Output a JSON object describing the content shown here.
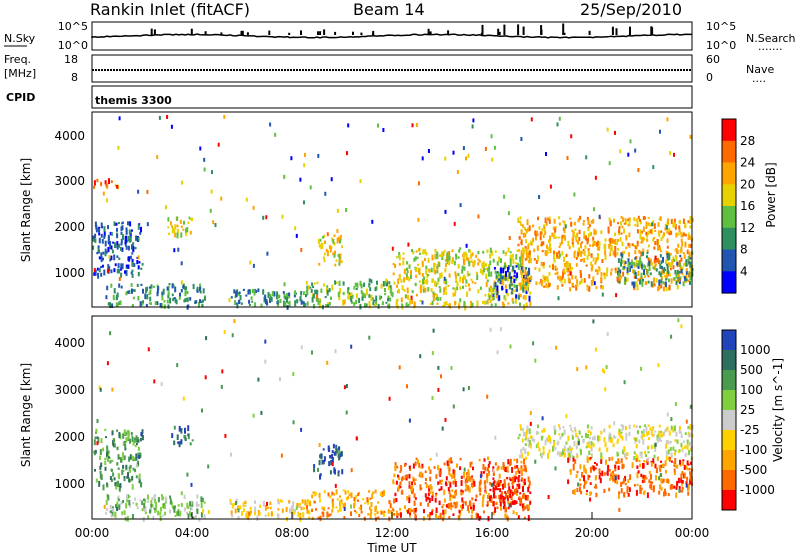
{
  "header": {
    "title": "Rankin Inlet (fitACF)",
    "beam": "Beam 14",
    "date": "25/Sep/2010"
  },
  "top_panel": {
    "left_label": "N.Sky",
    "left_ticks": [
      "10^5",
      "10^0"
    ],
    "right_ticks": [
      "10^5",
      "10^0"
    ],
    "right_label": "N.Search",
    "right_dots": "......."
  },
  "freq_panel": {
    "left_label_1": "Freq.",
    "left_label_2": "[MHz]",
    "left_ticks": [
      "18",
      "8"
    ],
    "right_ticks": [
      "60",
      "0"
    ],
    "right_label": "Nave",
    "right_dots": "...."
  },
  "cpid_panel": {
    "label": "CPID",
    "value": "themis 3300"
  },
  "chart_data": [
    {
      "type": "heatmap",
      "quantity": "Power",
      "ylabel": "Slant Range [km]",
      "yticks": [
        "4000",
        "3000",
        "2000",
        "1000"
      ],
      "ylim": [
        180,
        4500
      ],
      "colorbar": {
        "label": "Power [dB]",
        "ticks": [
          "28",
          "24",
          "20",
          "16",
          "12",
          "8",
          "4"
        ],
        "colors": [
          "#ff0000",
          "#ff6a00",
          "#ffa500",
          "#e8d100",
          "#5fbf40",
          "#2f8f5f",
          "#2255b0",
          "#0000ff"
        ]
      },
      "regions": [
        {
          "t0": 0.0,
          "t1": 2.0,
          "r0": 900,
          "r1": 2100,
          "level": 6
        },
        {
          "t0": 0.0,
          "t1": 1.0,
          "r0": 2850,
          "r1": 3050,
          "level": 1
        },
        {
          "t0": 0.5,
          "t1": 4.5,
          "r0": 200,
          "r1": 700,
          "level": 5
        },
        {
          "t0": 3.0,
          "t1": 4.0,
          "r0": 1800,
          "r1": 2200,
          "level": 3
        },
        {
          "t0": 5.5,
          "t1": 8.5,
          "r0": 200,
          "r1": 600,
          "level": 5
        },
        {
          "t0": 8.5,
          "t1": 12.0,
          "r0": 200,
          "r1": 800,
          "level": 4
        },
        {
          "t0": 9.0,
          "t1": 10.0,
          "r0": 1100,
          "r1": 1800,
          "level": 3
        },
        {
          "t0": 12.0,
          "t1": 17.5,
          "r0": 200,
          "r1": 1500,
          "level": 3
        },
        {
          "t0": 16.0,
          "t1": 17.5,
          "r0": 400,
          "r1": 1100,
          "level": 6
        },
        {
          "t0": 17.0,
          "t1": 23.99,
          "r0": 600,
          "r1": 2200,
          "level": 2
        },
        {
          "t0": 21.0,
          "t1": 23.99,
          "r0": 700,
          "r1": 1400,
          "level": 5
        }
      ]
    },
    {
      "type": "heatmap",
      "quantity": "Velocity",
      "ylabel": "Slant Range [km]",
      "yticks": [
        "4000",
        "3000",
        "2000",
        "1000"
      ],
      "ylim": [
        180,
        4500
      ],
      "colorbar": {
        "label": "Velocity [m s^-1]",
        "ticks": [
          "1000",
          "500",
          "100",
          "25",
          "-25",
          "-100",
          "-500",
          "-1000"
        ],
        "colors": [
          "#2244bb",
          "#2f6f5f",
          "#4a9a50",
          "#7fcf40",
          "#cccccc",
          "#ffd100",
          "#ffa500",
          "#ff6a00",
          "#ff0000"
        ]
      },
      "regions": [
        {
          "t0": 0.0,
          "t1": 2.0,
          "r0": 900,
          "r1": 2100,
          "level": 2
        },
        {
          "t0": 0.5,
          "t1": 4.5,
          "r0": 200,
          "r1": 700,
          "level": 3
        },
        {
          "t0": 3.0,
          "t1": 4.0,
          "r0": 1800,
          "r1": 2200,
          "level": 1
        },
        {
          "t0": 5.5,
          "t1": 8.5,
          "r0": 200,
          "r1": 600,
          "level": 5
        },
        {
          "t0": 8.5,
          "t1": 12.0,
          "r0": 200,
          "r1": 800,
          "level": 6
        },
        {
          "t0": 9.0,
          "t1": 10.0,
          "r0": 1100,
          "r1": 1800,
          "level": 0
        },
        {
          "t0": 12.0,
          "t1": 17.5,
          "r0": 200,
          "r1": 1500,
          "level": 7
        },
        {
          "t0": 16.0,
          "t1": 17.5,
          "r0": 400,
          "r1": 1100,
          "level": 8
        },
        {
          "t0": 17.0,
          "t1": 23.99,
          "r0": 1500,
          "r1": 2200,
          "level": 4
        },
        {
          "t0": 19.0,
          "t1": 23.99,
          "r0": 700,
          "r1": 1500,
          "level": 7
        }
      ]
    }
  ],
  "xaxis": {
    "label": "Time UT",
    "ticks": [
      "00:00",
      "04:00",
      "08:00",
      "12:00",
      "16:00",
      "20:00",
      "00:00"
    ],
    "range_hours": [
      0,
      24
    ]
  }
}
